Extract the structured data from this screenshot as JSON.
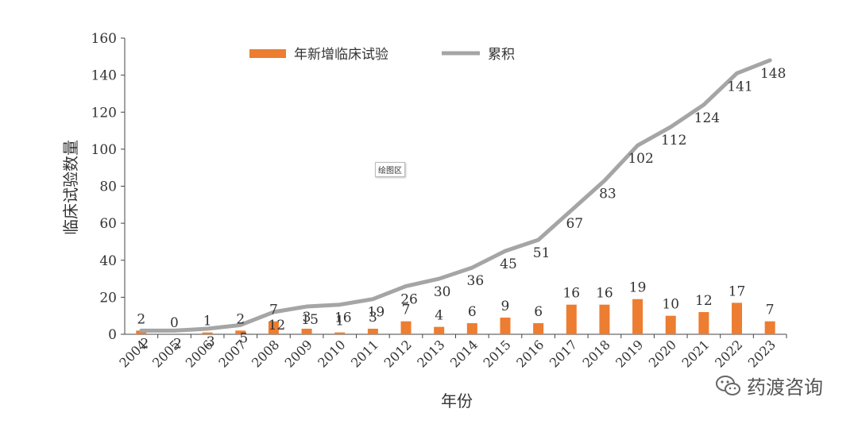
{
  "chart_data": {
    "type": "bar+line",
    "categories": [
      "2004",
      "2005",
      "2006",
      "2007",
      "2008",
      "2009",
      "2010",
      "2011",
      "2012",
      "2013",
      "2014",
      "2015",
      "2016",
      "2017",
      "2018",
      "2019",
      "2020",
      "2021",
      "2022",
      "2023"
    ],
    "series": [
      {
        "name": "年新增临床试验",
        "type": "bar",
        "color": "#ED7D31",
        "values": [
          2,
          0,
          1,
          2,
          7,
          3,
          1,
          3,
          7,
          4,
          6,
          9,
          6,
          16,
          16,
          19,
          10,
          12,
          17,
          7
        ],
        "labels": [
          "2",
          "0",
          "1",
          "2",
          "7",
          "3",
          "1",
          "3",
          "7",
          "4",
          "6",
          "9",
          "6",
          "16",
          "16",
          "19",
          "10",
          "12",
          "17",
          "7"
        ]
      },
      {
        "name": "累积",
        "type": "line",
        "color": "#A5A5A5",
        "values": [
          2,
          2,
          3,
          5,
          12,
          15,
          16,
          19,
          26,
          30,
          36,
          45,
          51,
          67,
          83,
          102,
          112,
          124,
          141,
          148
        ],
        "labels": [
          "2",
          "2",
          "3",
          "5",
          "12",
          "15",
          "16",
          "19",
          "26",
          "30",
          "36",
          "45",
          "51",
          "67",
          "83",
          "102",
          "112",
          "124",
          "141",
          "148"
        ]
      }
    ],
    "xlabel": "年份",
    "ylabel": "临床试验数量",
    "ylim": [
      0,
      160
    ],
    "yticks": [
      "0",
      "20",
      "40",
      "60",
      "80",
      "100",
      "120",
      "140",
      "160"
    ],
    "legend": "top-center",
    "grid": false
  },
  "plot_area_tag": "绘图区",
  "watermark": {
    "text": "药渡咨询",
    "icon": "wechat-icon"
  }
}
